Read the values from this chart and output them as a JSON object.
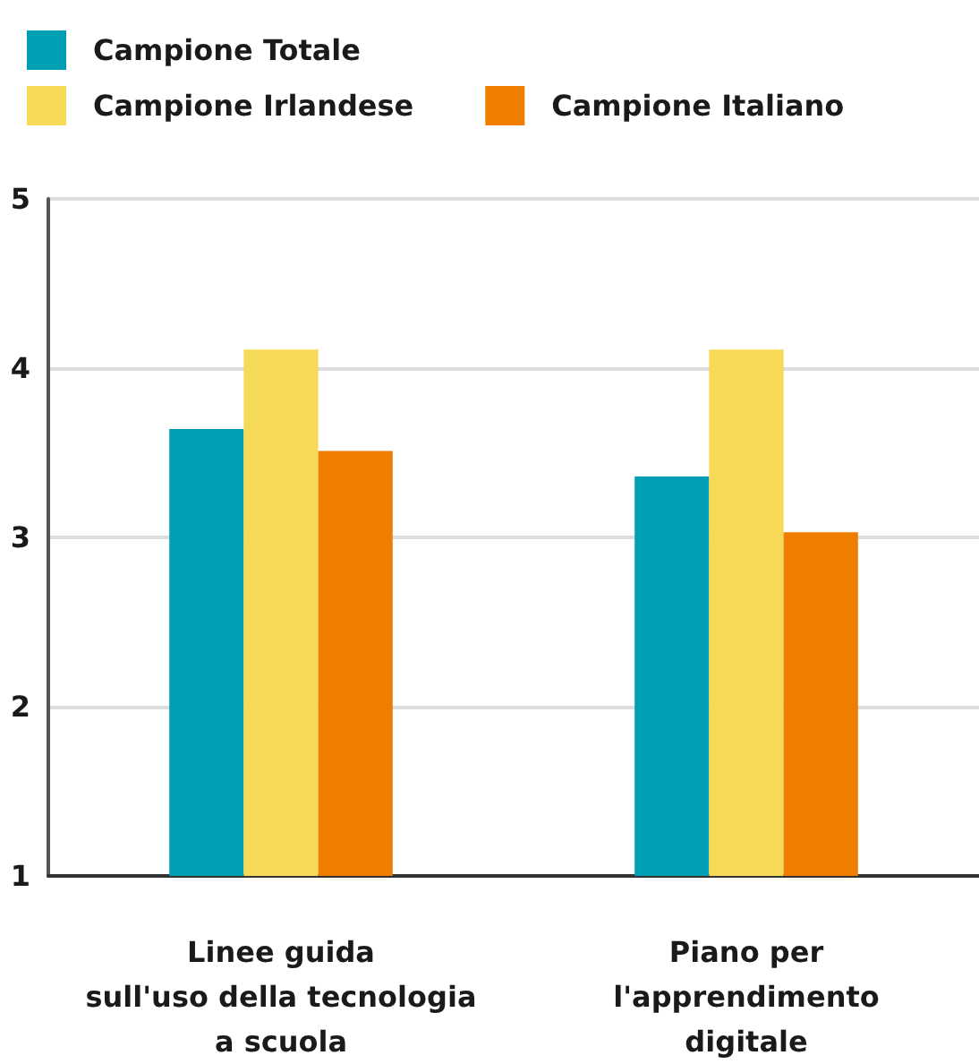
{
  "chart_data": {
    "type": "bar",
    "categories": [
      "Linee guida\nsull'uso della tecnologia\na scuola",
      "Piano per\nl'apprendimento\ndigitale"
    ],
    "series": [
      {
        "name": "Campione Totale",
        "color": "#009fb6",
        "values": [
          3.64,
          3.36
        ]
      },
      {
        "name": "Campione Irlandese",
        "color": "#f6da57",
        "values": [
          4.11,
          4.11
        ]
      },
      {
        "name": "Campione Italiano",
        "color": "#ef7d00",
        "values": [
          3.51,
          3.03
        ]
      }
    ],
    "ylim": [
      1,
      5
    ],
    "yticks": [
      1,
      2,
      3,
      4,
      5
    ],
    "grid": "y",
    "legend": "top left"
  }
}
